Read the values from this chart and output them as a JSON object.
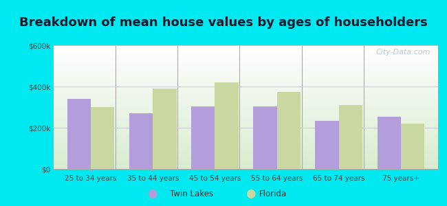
{
  "title": "Breakdown of mean house values by ages of householders",
  "categories": [
    "25 to 34 years",
    "35 to 44 years",
    "45 to 54 years",
    "55 to 64 years",
    "65 to 74 years",
    "75 years+"
  ],
  "twin_lakes": [
    340000,
    270000,
    305000,
    305000,
    235000,
    255000
  ],
  "florida": [
    300000,
    390000,
    420000,
    375000,
    310000,
    220000
  ],
  "twin_lakes_color": "#b39ddb",
  "florida_color": "#c8d8a0",
  "bar_width": 0.38,
  "ylim": [
    0,
    600000
  ],
  "yticks": [
    0,
    200000,
    400000,
    600000
  ],
  "ytick_labels": [
    "$0",
    "$200k",
    "$400k",
    "$600k"
  ],
  "background_color": "#00e8f0",
  "title_fontsize": 13,
  "legend_labels": [
    "Twin Lakes",
    "Florida"
  ],
  "watermark": "City-Data.com"
}
